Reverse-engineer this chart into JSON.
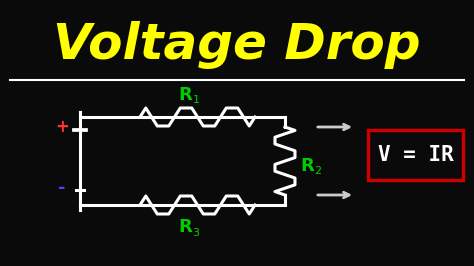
{
  "bg_color": "#0a0a0a",
  "title": "Voltage Drop",
  "title_color": "#ffff00",
  "title_fontsize": 36,
  "divider_color": "#ffffff",
  "circuit_color": "#ffffff",
  "label_color": "#00cc00",
  "plus_color": "#ff3333",
  "minus_color": "#4444ff",
  "arrow_color": "#cccccc",
  "formula_color": "#ffffff",
  "formula_box_color": "#cc0000",
  "formula_text": "V = IR",
  "R1_label": "R",
  "R1_sub": "1",
  "R2_label": "R",
  "R2_sub": "2",
  "R3_label": "R",
  "R3_sub": "3"
}
